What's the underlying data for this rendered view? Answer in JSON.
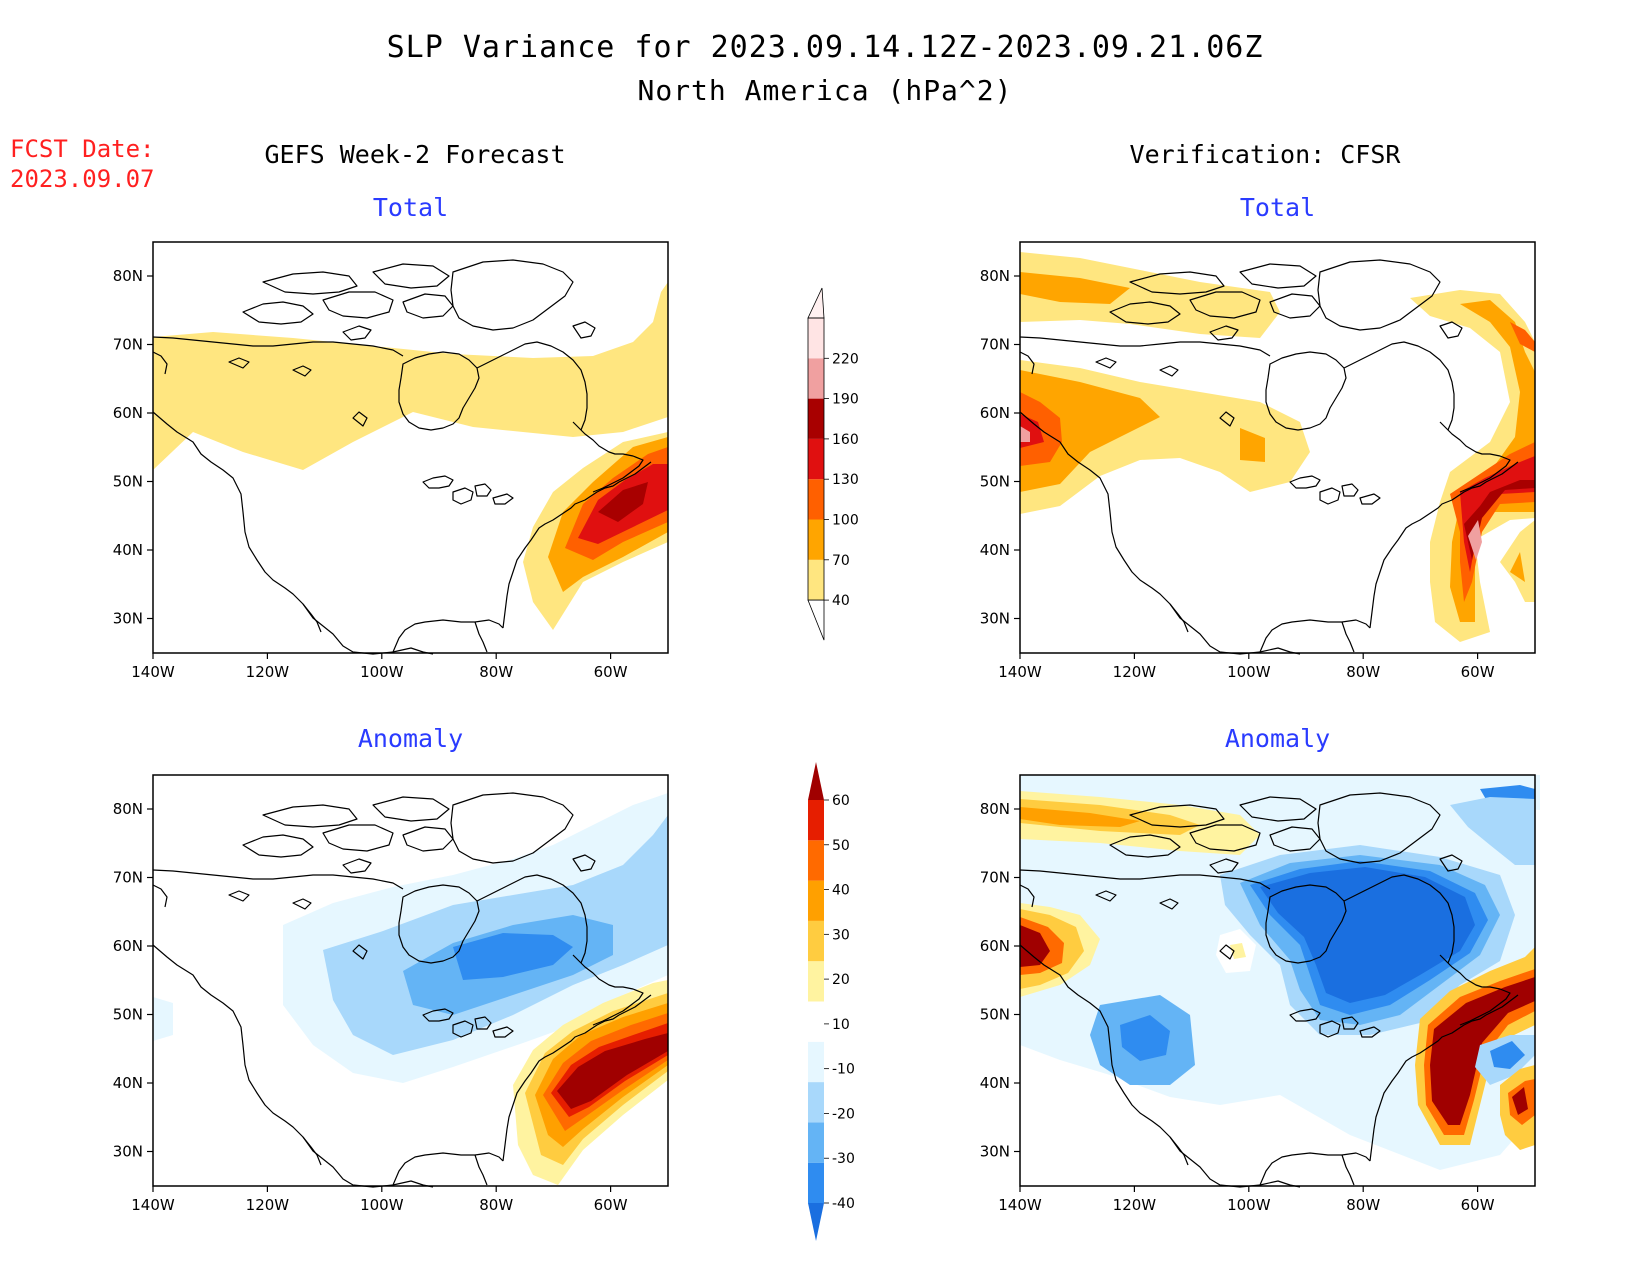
{
  "header": {
    "title": "SLP Variance for 2023.09.14.12Z-2023.09.21.06Z",
    "subtitle": "North America (hPa^2)",
    "fcst_date_label": "FCST Date:",
    "fcst_date": "2023.09.07"
  },
  "columns": {
    "left_title": "GEFS Week-2 Forecast",
    "right_title": "Verification: CFSR"
  },
  "panels": {
    "forecast_total": "Total",
    "forecast_anomaly": "Anomaly",
    "verification_total": "Total",
    "verification_anomaly": "Anomaly"
  },
  "axes": {
    "lon_ticks": [
      "140W",
      "120W",
      "100W",
      "80W",
      "60W"
    ],
    "lat_ticks": [
      "80N",
      "70N",
      "60N",
      "50N",
      "40N",
      "30N"
    ]
  },
  "colorbars": {
    "total": {
      "labels": [
        "40",
        "70",
        "100",
        "130",
        "160",
        "190",
        "220"
      ],
      "colors": [
        "#ffe680",
        "#ffa500",
        "#ff6000",
        "#e01010",
        "#a80000",
        "#f0a0a0",
        "#ffe4e4"
      ]
    },
    "anomaly": {
      "labels": [
        "-40",
        "-30",
        "-20",
        "-10",
        "10",
        "20",
        "30",
        "40",
        "50",
        "60"
      ],
      "colors": [
        "#1a6fe0",
        "#2f8cf0",
        "#64b4f5",
        "#a8d8fb",
        "#e6f7ff",
        "#ffffff",
        "#fff3a0",
        "#ffcc40",
        "#ffa000",
        "#ff6a00",
        "#e61e00",
        "#a00000"
      ]
    }
  }
}
